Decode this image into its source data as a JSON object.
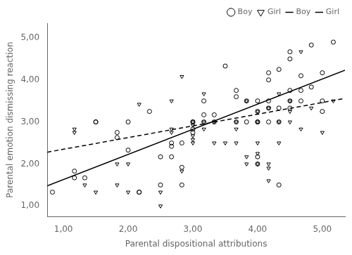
{
  "chart_data": {
    "type": "scatter",
    "xlabel": "Parental dispositional attributions",
    "ylabel": "Parental emotion dismissing reaction",
    "xlim": [
      0.75,
      5.35
    ],
    "ylim": [
      0.75,
      5.35
    ],
    "xticks": [
      {
        "value": 1.0,
        "label": "1,00"
      },
      {
        "value": 2.0,
        "label": "2,00"
      },
      {
        "value": 3.0,
        "label": "3,00"
      },
      {
        "value": 4.0,
        "label": "4,00"
      },
      {
        "value": 5.0,
        "label": "5,00"
      }
    ],
    "yticks": [
      {
        "value": 1.0,
        "label": "1,00"
      },
      {
        "value": 2.0,
        "label": "2,00"
      },
      {
        "value": 3.0,
        "label": "3,00"
      },
      {
        "value": 4.0,
        "label": "4,00"
      },
      {
        "value": 5.0,
        "label": "5,00"
      }
    ],
    "grid": false,
    "legend": "upper right",
    "series": [
      {
        "name": "Boy",
        "type": "scatter",
        "marker": "circle",
        "color": "black",
        "x": [
          0.83,
          1.17,
          1.17,
          1.33,
          1.5,
          1.5,
          1.83,
          1.83,
          2.0,
          2.0,
          2.17,
          2.17,
          2.33,
          2.5,
          2.5,
          2.67,
          2.67,
          2.67,
          2.83,
          2.83,
          2.83,
          3.0,
          3.0,
          3.0,
          3.0,
          3.17,
          3.17,
          3.17,
          3.33,
          3.33,
          3.5,
          3.67,
          3.67,
          3.67,
          3.83,
          3.83,
          4.0,
          4.0,
          4.0,
          4.0,
          4.0,
          4.0,
          4.17,
          4.17,
          4.17,
          4.17,
          4.17,
          4.33,
          4.33,
          4.33,
          4.33,
          4.5,
          4.5,
          4.5,
          4.5,
          4.5,
          4.67,
          4.67,
          4.67,
          4.83,
          4.83,
          5.0,
          5.0,
          5.0,
          5.17
        ],
        "values": [
          1.33,
          1.67,
          1.83,
          1.67,
          3.0,
          3.0,
          2.75,
          2.63,
          2.33,
          3.0,
          1.33,
          1.33,
          3.25,
          1.5,
          2.17,
          2.17,
          2.42,
          2.5,
          1.5,
          1.92,
          2.5,
          2.75,
          2.83,
          3.0,
          3.0,
          3.0,
          3.17,
          3.5,
          3.0,
          3.17,
          4.33,
          3.0,
          3.6,
          3.75,
          3.0,
          3.5,
          2.0,
          2.17,
          3.0,
          3.0,
          3.25,
          3.5,
          3.0,
          3.33,
          3.5,
          4.0,
          4.17,
          1.5,
          3.0,
          3.33,
          4.25,
          3.33,
          3.5,
          3.75,
          4.5,
          4.67,
          3.5,
          3.75,
          4.1,
          3.83,
          4.83,
          3.25,
          3.5,
          4.17,
          4.9
        ]
      },
      {
        "name": "Girl",
        "type": "scatter",
        "marker": "triangle_down",
        "color": "black",
        "x": [
          1.17,
          1.17,
          1.33,
          1.5,
          1.83,
          1.83,
          2.0,
          2.0,
          2.17,
          2.5,
          2.5,
          2.67,
          2.67,
          2.67,
          2.83,
          2.83,
          3.0,
          3.0,
          3.0,
          3.0,
          3.0,
          3.17,
          3.17,
          3.17,
          3.33,
          3.33,
          3.5,
          3.67,
          3.67,
          3.67,
          3.83,
          3.83,
          3.83,
          4.0,
          4.0,
          4.0,
          4.0,
          4.0,
          4.17,
          4.17,
          4.17,
          4.17,
          4.33,
          4.33,
          4.33,
          4.5,
          4.5,
          4.5,
          4.67,
          4.67,
          4.83,
          5.0,
          5.17
        ],
        "values": [
          2.75,
          2.83,
          1.5,
          1.33,
          1.5,
          2.0,
          1.33,
          2.0,
          3.42,
          1.0,
          1.33,
          2.75,
          2.83,
          3.5,
          1.83,
          4.08,
          2.5,
          2.58,
          2.67,
          2.92,
          3.0,
          2.83,
          3.0,
          3.67,
          2.5,
          3.0,
          2.5,
          2.5,
          2.83,
          3.0,
          2.0,
          2.17,
          3.5,
          2.0,
          2.25,
          2.5,
          3.0,
          3.25,
          1.6,
          1.9,
          2.0,
          3.33,
          2.5,
          3.0,
          3.67,
          3.0,
          3.25,
          3.5,
          2.83,
          4.67,
          3.33,
          2.75,
          3.5
        ]
      },
      {
        "name": "Boy",
        "type": "line",
        "line_style": "solid",
        "color": "black",
        "x": [
          0.75,
          5.35
        ],
        "values": [
          1.48,
          4.23
        ]
      },
      {
        "name": "Girl",
        "type": "line",
        "line_style": "dashed",
        "color": "black",
        "x": [
          0.75,
          5.35
        ],
        "values": [
          2.28,
          3.56
        ]
      }
    ]
  }
}
